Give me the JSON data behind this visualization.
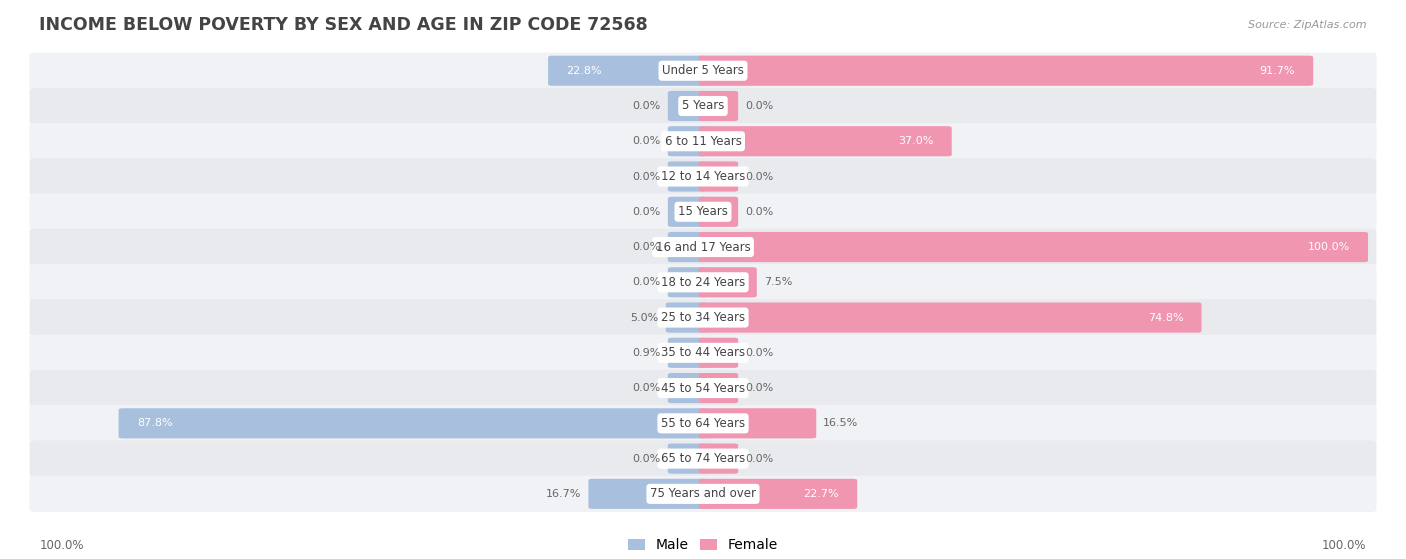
{
  "title": "INCOME BELOW POVERTY BY SEX AND AGE IN ZIP CODE 72568",
  "source": "Source: ZipAtlas.com",
  "categories": [
    "Under 5 Years",
    "5 Years",
    "6 to 11 Years",
    "12 to 14 Years",
    "15 Years",
    "16 and 17 Years",
    "18 to 24 Years",
    "25 to 34 Years",
    "35 to 44 Years",
    "45 to 54 Years",
    "55 to 64 Years",
    "65 to 74 Years",
    "75 Years and over"
  ],
  "male": [
    22.8,
    0.0,
    0.0,
    0.0,
    0.0,
    0.0,
    0.0,
    5.0,
    0.9,
    0.0,
    87.8,
    0.0,
    16.7
  ],
  "female": [
    91.7,
    0.0,
    37.0,
    0.0,
    0.0,
    100.0,
    7.5,
    74.8,
    0.0,
    0.0,
    16.5,
    0.0,
    22.7
  ],
  "male_color": "#a8c0dd",
  "female_color": "#f096b0",
  "row_bg_colors": [
    "#f0f2f5",
    "#e8eaed"
  ],
  "title_color": "#444444",
  "source_color": "#999999",
  "label_color_dark": "#666666",
  "label_color_white": "#ffffff",
  "cat_label_bg": "#ffffff",
  "cat_label_color": "#444444"
}
